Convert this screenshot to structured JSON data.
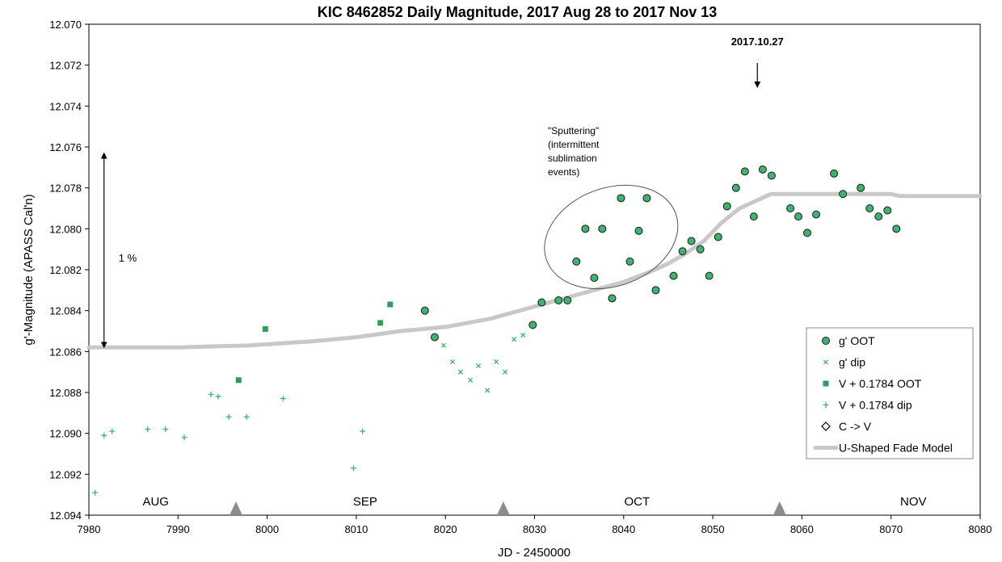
{
  "chart_data": {
    "type": "scatter",
    "title": "KIC 8462852 Daily Magnitude, 2017 Aug 28 to 2017 Nov 13",
    "xlabel": "JD - 2450000",
    "ylabel": "g'-Magnitude (APASS Cal'n)",
    "xlim": [
      7980,
      8080
    ],
    "ylim": [
      12.07,
      12.094
    ],
    "y_inverted": true,
    "x_ticks": [
      7980,
      7990,
      8000,
      8010,
      8020,
      8030,
      8040,
      8050,
      8060,
      8070,
      8080
    ],
    "x_tick_labels": [
      "7980",
      "7990",
      "8000",
      "8010",
      "8020",
      "8030",
      "8040",
      "8050",
      "8060",
      "8070",
      "8080"
    ],
    "y_ticks": [
      12.07,
      12.072,
      12.074,
      12.076,
      12.078,
      12.08,
      12.082,
      12.084,
      12.086,
      12.088,
      12.09,
      12.092,
      12.094
    ],
    "y_tick_labels": [
      "12.070",
      "12.072",
      "12.074",
      "12.076",
      "12.078",
      "12.080",
      "12.082",
      "12.084",
      "12.086",
      "12.088",
      "12.090",
      "12.092",
      "12.094"
    ],
    "grid": false,
    "legend_position": "bottom-right",
    "series": [
      {
        "name": "g' OOT",
        "marker": "circle",
        "color": "#3cb371",
        "points": [
          [
            8017.7,
            12.084
          ],
          [
            8018.8,
            12.0853
          ],
          [
            8029.8,
            12.0847
          ],
          [
            8030.8,
            12.0836
          ],
          [
            8032.7,
            12.0835
          ],
          [
            8033.7,
            12.0835
          ],
          [
            8034.7,
            12.0816
          ],
          [
            8035.7,
            12.08
          ],
          [
            8036.7,
            12.0824
          ],
          [
            8037.6,
            12.08
          ],
          [
            8038.7,
            12.0834
          ],
          [
            8039.7,
            12.0785
          ],
          [
            8040.7,
            12.0816
          ],
          [
            8041.7,
            12.0801
          ],
          [
            8042.6,
            12.0785
          ],
          [
            8043.6,
            12.083
          ],
          [
            8045.6,
            12.0823
          ],
          [
            8046.6,
            12.0811
          ],
          [
            8047.6,
            12.0806
          ],
          [
            8048.6,
            12.081
          ],
          [
            8049.6,
            12.0823
          ],
          [
            8050.6,
            12.0804
          ],
          [
            8051.6,
            12.0789
          ],
          [
            8052.6,
            12.078
          ],
          [
            8053.6,
            12.0772
          ],
          [
            8054.6,
            12.0794
          ],
          [
            8055.6,
            12.0771
          ],
          [
            8056.6,
            12.0774
          ],
          [
            8058.7,
            12.079
          ],
          [
            8059.6,
            12.0794
          ],
          [
            8060.6,
            12.0802
          ],
          [
            8061.6,
            12.0793
          ],
          [
            8063.6,
            12.0773
          ],
          [
            8064.6,
            12.0783
          ],
          [
            8066.6,
            12.078
          ],
          [
            8067.6,
            12.079
          ],
          [
            8068.6,
            12.0794
          ],
          [
            8069.6,
            12.0791
          ],
          [
            8070.6,
            12.08
          ]
        ]
      },
      {
        "name": "g' dip",
        "marker": "x",
        "color": "#3cb371",
        "points": [
          [
            8019.8,
            12.0857
          ],
          [
            8020.8,
            12.0865
          ],
          [
            8021.7,
            12.087
          ],
          [
            8022.8,
            12.0874
          ],
          [
            8023.7,
            12.0867
          ],
          [
            8024.7,
            12.0879
          ],
          [
            8025.7,
            12.0865
          ],
          [
            8026.7,
            12.087
          ],
          [
            8027.7,
            12.0854
          ],
          [
            8028.7,
            12.0852
          ]
        ]
      },
      {
        "name": "V + 0.1784 OOT",
        "marker": "square",
        "color": "#2e9e5b",
        "points": [
          [
            7996.8,
            12.0874
          ],
          [
            7999.8,
            12.0849
          ],
          [
            8012.7,
            12.0846
          ],
          [
            8013.8,
            12.0837
          ]
        ]
      },
      {
        "name": "V + 0.1784 dip",
        "marker": "plus",
        "color": "#3cb371",
        "points": [
          [
            7980.7,
            12.0929
          ],
          [
            7981.7,
            12.0901
          ],
          [
            7982.6,
            12.0899
          ],
          [
            7986.6,
            12.0898
          ],
          [
            7988.6,
            12.0898
          ],
          [
            7990.7,
            12.0902
          ],
          [
            7993.7,
            12.0881
          ],
          [
            7994.5,
            12.0882
          ],
          [
            7995.7,
            12.0892
          ],
          [
            7997.7,
            12.0892
          ],
          [
            8001.8,
            12.0883
          ],
          [
            8009.7,
            12.0917
          ],
          [
            8010.7,
            12.0899
          ]
        ]
      },
      {
        "name": "C -> V",
        "marker": "diamond",
        "color": "#000000",
        "points": []
      },
      {
        "name": "U-Shaped Fade Model",
        "marker": "line",
        "color": "#c8c8c8",
        "points": [
          [
            7980,
            12.0858
          ],
          [
            7990,
            12.0858
          ],
          [
            7998,
            12.0857
          ],
          [
            8005,
            12.0855
          ],
          [
            8010,
            12.0853
          ],
          [
            8015,
            12.085
          ],
          [
            8020,
            12.0848
          ],
          [
            8025,
            12.0844
          ],
          [
            8030,
            12.0838
          ],
          [
            8035,
            12.0832
          ],
          [
            8040,
            12.0826
          ],
          [
            8043,
            12.0821
          ],
          [
            8045,
            12.0817
          ],
          [
            8047,
            12.0812
          ],
          [
            8049,
            12.0806
          ],
          [
            8051,
            12.0797
          ],
          [
            8053,
            12.079
          ],
          [
            8055,
            12.0786
          ],
          [
            8056.5,
            12.0783
          ],
          [
            8057.2,
            12.0783
          ],
          [
            8060,
            12.0783
          ],
          [
            8070,
            12.0783
          ],
          [
            8071,
            12.0784
          ],
          [
            8080,
            12.0784
          ]
        ]
      }
    ],
    "annotations": {
      "date_label": "2017.10.27",
      "date_arrow_x": 8055,
      "percent_label": "1 %",
      "percent_arrow_range": [
        12.0763,
        12.0858
      ],
      "percent_arrow_x": 7981.7,
      "sputtering_lines": [
        "\"Sputtering\"",
        "(intermittent",
        "sublimation",
        "events)"
      ],
      "sputtering_ellipse": {
        "center_x": 8038.6,
        "center_y": 12.0804,
        "radius_x": 7.7,
        "radius_y": 0.0024,
        "angle_deg": -20
      },
      "month_labels": [
        {
          "label": "AUG",
          "x": 7987.5
        },
        {
          "label": "SEP",
          "x": 8011.0
        },
        {
          "label": "OCT",
          "x": 8041.5
        },
        {
          "label": "NOV",
          "x": 8072.5
        }
      ],
      "month_markers": [
        7996.5,
        8026.5,
        8057.5
      ]
    }
  }
}
